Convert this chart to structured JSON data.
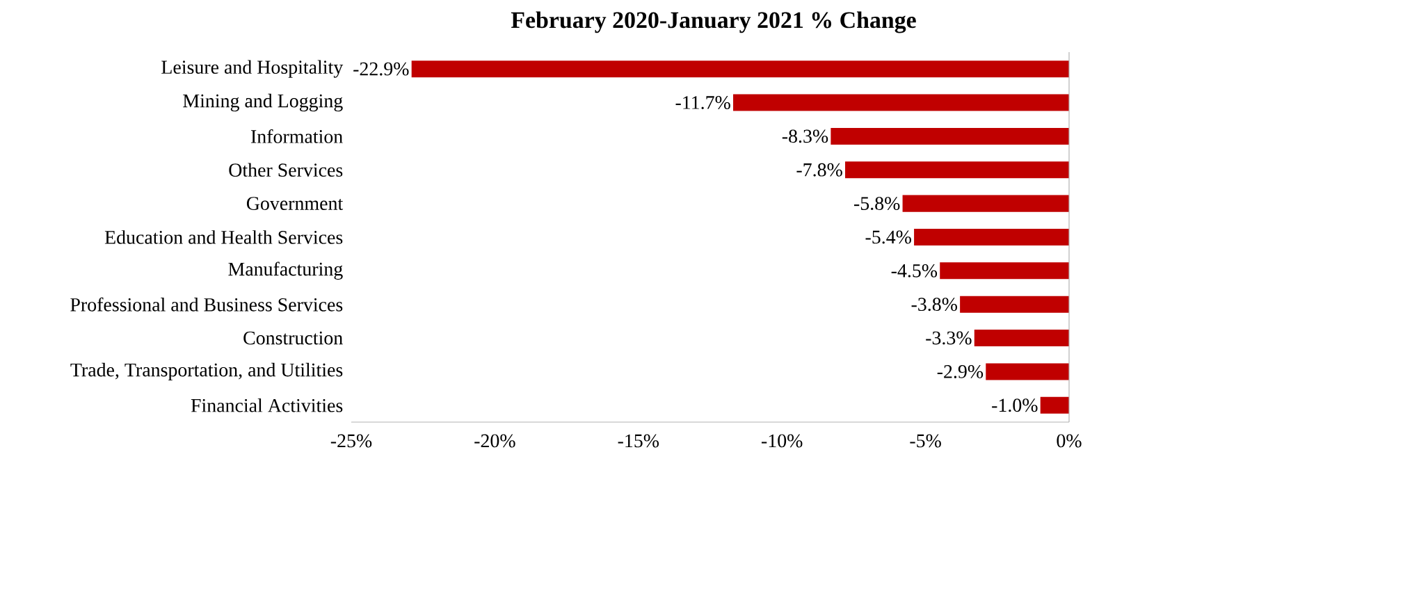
{
  "chart_data": {
    "type": "bar",
    "orientation": "horizontal",
    "title": "February 2020-January 2021 % Change",
    "categories": [
      "Leisure and Hospitality",
      "Mining and Logging",
      "Information",
      "Other Services",
      "Government",
      "Education and Health Services",
      "Manufacturing",
      "Professional and Business Services",
      "Construction",
      "Trade, Transportation, and Utilities",
      "Financial Activities"
    ],
    "values": [
      -22.9,
      -11.7,
      -8.3,
      -7.8,
      -5.8,
      -5.4,
      -4.5,
      -3.8,
      -3.3,
      -2.9,
      -1.0
    ],
    "value_labels": [
      "-22.9%",
      "-11.7%",
      "-8.3%",
      "-7.8%",
      "-5.8%",
      "-5.4%",
      "-4.5%",
      "-3.8%",
      "-3.3%",
      "-2.9%",
      "-1.0%"
    ],
    "color": "#c00000",
    "xlim": [
      -25,
      0
    ],
    "xticks": [
      {
        "value": -25,
        "label": "-25%"
      },
      {
        "value": -20,
        "label": "-20%"
      },
      {
        "value": -15,
        "label": "-15%"
      },
      {
        "value": -10,
        "label": "-10%"
      },
      {
        "value": -5,
        "label": "-5%"
      },
      {
        "value": 0,
        "label": "0%"
      }
    ],
    "tick_labels": "xy"
  }
}
